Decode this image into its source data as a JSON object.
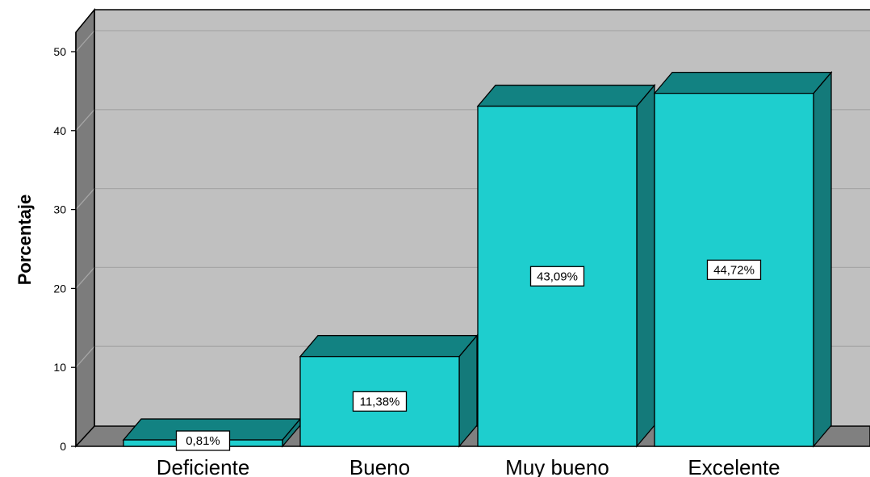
{
  "chart_data": {
    "type": "bar",
    "categories": [
      "Deficiente",
      "Bueno",
      "Muy bueno",
      "Excelente"
    ],
    "values": [
      0.81,
      11.38,
      43.09,
      44.72
    ],
    "data_labels": [
      "0,81%",
      "11,38%",
      "43,09%",
      "44,72%"
    ],
    "ylabel": "Porcentaje",
    "xlabel": "",
    "ylim": [
      0,
      50
    ],
    "yticks": [
      "0",
      "10",
      "20",
      "30",
      "40",
      "50"
    ],
    "grid": true,
    "colors": {
      "bar_front": "#1ECECE",
      "bar_top": "#128282",
      "bar_side": "#147A7A",
      "wall": "#C0C0C0",
      "side_wall": "#7C7C7C",
      "floor": "#808080",
      "grid": "#A6A6A6"
    }
  }
}
